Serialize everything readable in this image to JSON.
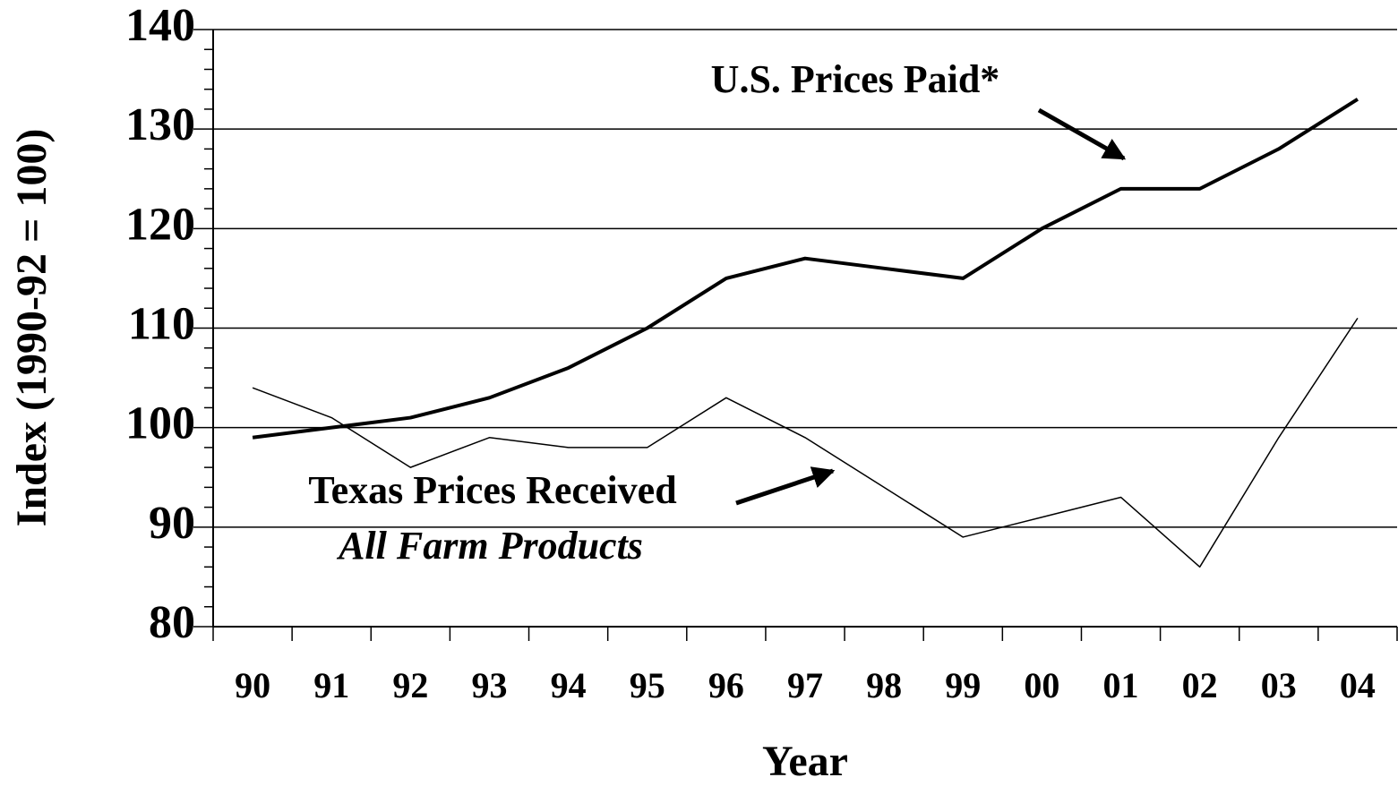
{
  "chart_data": {
    "type": "line",
    "x_label": "Year",
    "y_label": "Index (1990-92 = 100)",
    "categories": [
      "90",
      "91",
      "92",
      "93",
      "94",
      "95",
      "96",
      "97",
      "98",
      "99",
      "00",
      "01",
      "02",
      "03",
      "04"
    ],
    "series": [
      {
        "name": "U.S. Prices Paid*",
        "color": "#000000",
        "values": [
          99,
          100,
          101,
          103,
          106,
          110,
          115,
          117,
          116,
          115,
          120,
          124,
          124,
          128,
          133
        ]
      },
      {
        "name": "Texas Prices Received",
        "color": "#000000",
        "values": [
          104,
          101,
          96,
          99,
          98,
          98,
          103,
          99,
          94,
          89,
          91,
          93,
          86,
          99,
          111
        ]
      }
    ],
    "annotations": [
      "All Farm Products"
    ],
    "ylim": [
      80,
      140
    ],
    "yticks": [
      80,
      90,
      100,
      110,
      120,
      130,
      140
    ],
    "grid": true
  }
}
